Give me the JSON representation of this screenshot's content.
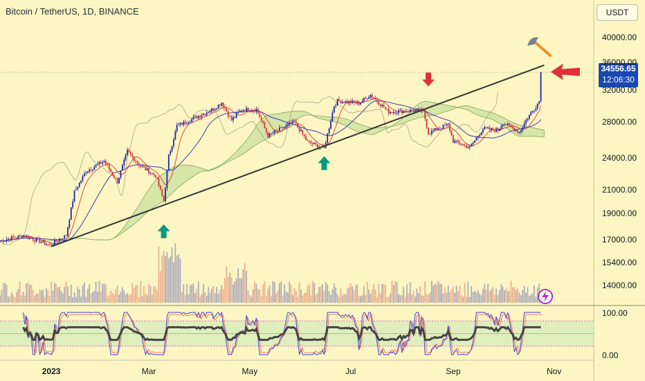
{
  "header": {
    "title": "Bitcoin / TetherUS, 1D, BINANCE",
    "currency": "USDT"
  },
  "price_badge": {
    "price": "34556.65",
    "countdown": "12:06:30"
  },
  "colors": {
    "background": "#fdf6c3",
    "up": "#1e22a8",
    "down": "#d22f2f",
    "trendline": "#333333",
    "marker_up": "#089981",
    "marker_down": "#e0303a",
    "cloud": "#b8d890"
  },
  "chart_data": {
    "type": "candlestick",
    "title": "Bitcoin / TetherUS, 1D, BINANCE",
    "y_scale": "log",
    "ylim": [
      13000,
      44000
    ],
    "y_ticks": [
      "40000.00",
      "36000.00",
      "32000.00",
      "28000.00",
      "24000.00",
      "21000.00",
      "19000.00",
      "17000.00",
      "15400.00",
      "14000.00"
    ],
    "x_ticks": [
      {
        "label": "2023",
        "date": "2023-01-01"
      },
      {
        "label": "Mar",
        "date": "2023-03-01"
      },
      {
        "label": "May",
        "date": "2023-05-01"
      },
      {
        "label": "Jul",
        "date": "2023-07-01"
      },
      {
        "label": "Sep",
        "date": "2023-09-01"
      },
      {
        "label": "Nov",
        "date": "2023-11-01"
      }
    ],
    "xlim": [
      "2022-12-01",
      "2023-11-25"
    ],
    "close_path": [
      [
        "2022-12-01",
        16900
      ],
      [
        "2022-12-15",
        17300
      ],
      [
        "2022-12-31",
        16600
      ],
      [
        "2023-01-10",
        17300
      ],
      [
        "2023-01-15",
        20800
      ],
      [
        "2023-01-22",
        22700
      ],
      [
        "2023-02-02",
        23700
      ],
      [
        "2023-02-10",
        21700
      ],
      [
        "2023-02-16",
        24700
      ],
      [
        "2023-02-24",
        23200
      ],
      [
        "2023-03-05",
        22300
      ],
      [
        "2023-03-10",
        20000
      ],
      [
        "2023-03-13",
        24200
      ],
      [
        "2023-03-18",
        27500
      ],
      [
        "2023-03-28",
        28400
      ],
      [
        "2023-04-10",
        29700
      ],
      [
        "2023-04-14",
        30400
      ],
      [
        "2023-04-20",
        28200
      ],
      [
        "2023-04-26",
        29500
      ],
      [
        "2023-05-05",
        29500
      ],
      [
        "2023-05-12",
        26400
      ],
      [
        "2023-05-28",
        28000
      ],
      [
        "2023-06-05",
        25700
      ],
      [
        "2023-06-15",
        25000
      ],
      [
        "2023-06-21",
        30000
      ],
      [
        "2023-06-23",
        30600
      ],
      [
        "2023-07-06",
        30300
      ],
      [
        "2023-07-13",
        31400
      ],
      [
        "2023-07-24",
        29200
      ],
      [
        "2023-08-10",
        29400
      ],
      [
        "2023-08-14",
        29300
      ],
      [
        "2023-08-17",
        26700
      ],
      [
        "2023-08-29",
        27700
      ],
      [
        "2023-09-01",
        25800
      ],
      [
        "2023-09-11",
        25100
      ],
      [
        "2023-09-19",
        27200
      ],
      [
        "2023-09-28",
        27000
      ],
      [
        "2023-10-01",
        27900
      ],
      [
        "2023-10-11",
        26800
      ],
      [
        "2023-10-16",
        28500
      ],
      [
        "2023-10-20",
        29600
      ],
      [
        "2023-10-23",
        30600
      ],
      [
        "2023-10-24",
        34556.65
      ]
    ],
    "current_price": 34556.65,
    "trendline": {
      "start": [
        "2023-01-01",
        16500
      ],
      "end": [
        "2023-10-26",
        35600
      ]
    },
    "oscillator": {
      "ylim": [
        0,
        100
      ],
      "ticks": [
        "100.00",
        "0.00"
      ]
    },
    "annotations": [
      {
        "type": "arrow-up",
        "date": "2023-03-10",
        "price": 17600
      },
      {
        "type": "arrow-up",
        "date": "2023-06-15",
        "price": 23500
      },
      {
        "type": "arrow-down",
        "date": "2023-08-17",
        "price": 33500
      },
      {
        "type": "arrow-left",
        "date": "2023-10-30",
        "price": 34600
      }
    ]
  }
}
